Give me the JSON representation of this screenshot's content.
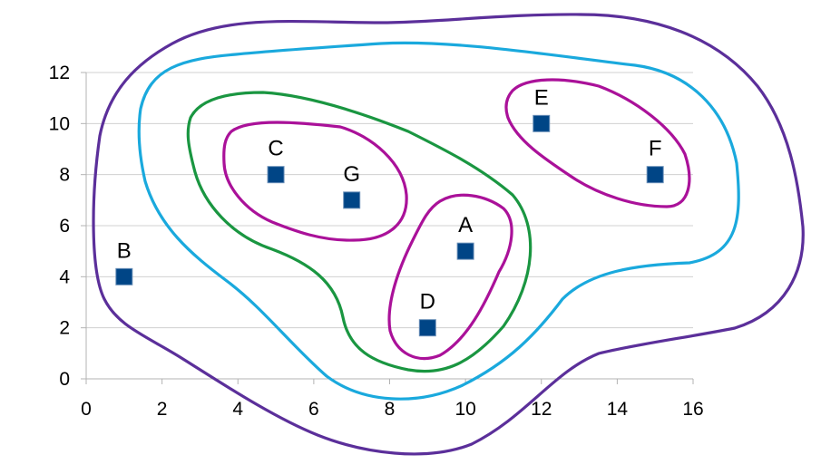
{
  "chart_data": {
    "type": "scatter",
    "title": "",
    "xlabel": "",
    "ylabel": "",
    "xlim": [
      0,
      16
    ],
    "ylim": [
      0,
      12
    ],
    "x_ticks": [
      0,
      2,
      4,
      6,
      8,
      10,
      12,
      14,
      16
    ],
    "y_ticks": [
      0,
      2,
      4,
      6,
      8,
      10,
      12
    ],
    "grid": "horizontal",
    "marker": "square",
    "marker_color": "#004586",
    "points": [
      {
        "label": "A",
        "x": 10,
        "y": 5
      },
      {
        "label": "B",
        "x": 1,
        "y": 4
      },
      {
        "label": "C",
        "x": 5,
        "y": 8
      },
      {
        "label": "D",
        "x": 9,
        "y": 2
      },
      {
        "label": "E",
        "x": 12,
        "y": 10
      },
      {
        "label": "F",
        "x": 15,
        "y": 8
      },
      {
        "label": "G",
        "x": 7,
        "y": 7
      }
    ],
    "annotations": {
      "type": "hand-drawn nested cluster outlines",
      "clusters": [
        {
          "level": 1,
          "color": "#aa1199",
          "members": [
            "C",
            "G"
          ]
        },
        {
          "level": 1,
          "color": "#aa1199",
          "members": [
            "A",
            "D"
          ]
        },
        {
          "level": 1,
          "color": "#aa1199",
          "members": [
            "E",
            "F"
          ]
        },
        {
          "level": 2,
          "color": "#1a9641",
          "members": [
            "A",
            "C",
            "D",
            "G"
          ]
        },
        {
          "level": 3,
          "color": "#1aa9dd",
          "members": [
            "A",
            "C",
            "D",
            "E",
            "F",
            "G"
          ]
        },
        {
          "level": 4,
          "color": "#5b2f9a",
          "members": [
            "A",
            "B",
            "C",
            "D",
            "E",
            "F",
            "G"
          ]
        }
      ]
    }
  }
}
